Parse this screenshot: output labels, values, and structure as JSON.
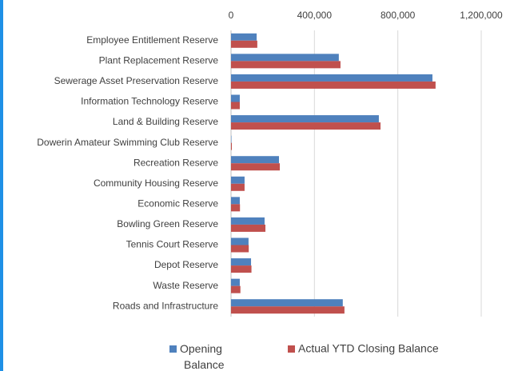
{
  "chart_data": {
    "type": "bar",
    "orientation": "horizontal",
    "categories": [
      "Employee Entitlement Reserve",
      "Plant Replacement Reserve",
      "Sewerage Asset Preservation Reserve",
      "Information Technology Reserve",
      "Land & Building Reserve",
      "Dowerin Amateur Swimming Club  Reserve",
      "Recreation Reserve",
      "Community Housing Reserve",
      "Economic Reserve",
      "Bowling Green Reserve",
      "Tennis Court Reserve",
      "Depot Reserve",
      "Waste Reserve",
      "Roads and Infrastructure"
    ],
    "series": [
      {
        "name": "Opening Balance",
        "color": "#4f81bd",
        "values": [
          123000,
          517000,
          966000,
          42000,
          709000,
          2000,
          230000,
          65000,
          42000,
          161000,
          84000,
          96000,
          42000,
          536000
        ]
      },
      {
        "name": "Actual YTD Closing Balance",
        "color": "#c0504d",
        "values": [
          126000,
          525000,
          981000,
          42000,
          717000,
          4000,
          234000,
          65000,
          43000,
          165000,
          85000,
          98000,
          45000,
          544000
        ]
      }
    ],
    "xlim": [
      0,
      1200000
    ],
    "xticks": [
      0,
      {
        "value": 400000,
        "label": "400,000"
      },
      {
        "value": 800000,
        "label": "800,000"
      },
      {
        "value": 1200000,
        "label": "1,200,000"
      }
    ],
    "grid": true,
    "legend": "bottom"
  }
}
